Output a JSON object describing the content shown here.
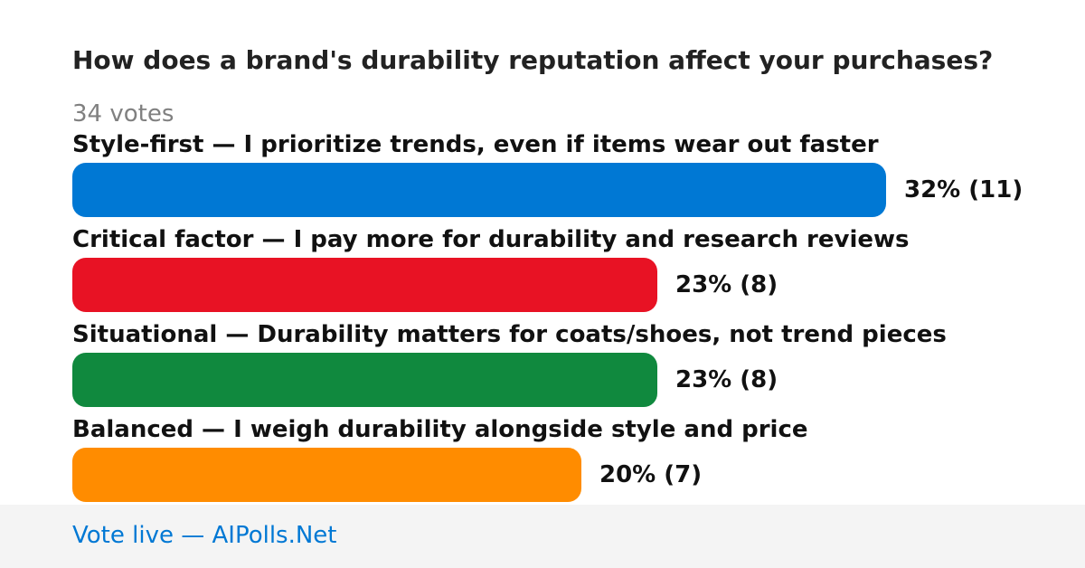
{
  "poll": {
    "question": "How does a brand's durability reputation affect your purchases?",
    "votes_label": "34 votes"
  },
  "chart_data": {
    "type": "bar",
    "orientation": "horizontal",
    "title": "How does a brand's durability reputation affect your purchases?",
    "total_votes": 34,
    "categories": [
      "Style-first — I prioritize trends, even if items wear out faster",
      "Critical factor — I pay more for durability and research reviews",
      "Situational — Durability matters for coats/shoes, not trend pieces",
      "Balanced — I weigh durability alongside style and price"
    ],
    "values": [
      32,
      23,
      23,
      20
    ],
    "counts": [
      11,
      8,
      8,
      7
    ],
    "value_labels": [
      "32% (11)",
      "23% (8)",
      "23% (8)",
      "20% (7)"
    ],
    "colors": [
      "#0078d4",
      "#e81224",
      "#10893e",
      "#ff8c00"
    ],
    "xlim": [
      0,
      32
    ],
    "grid": false
  },
  "footer": {
    "link_text": "Vote live — AIPolls.Net"
  }
}
